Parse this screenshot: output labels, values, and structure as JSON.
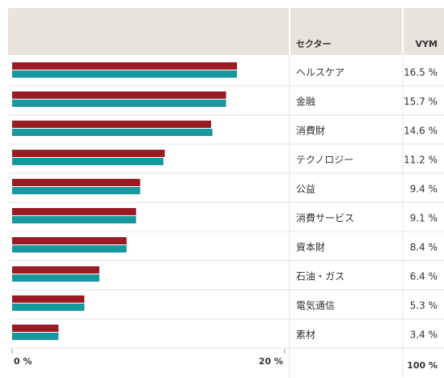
{
  "chart_data": {
    "type": "bar",
    "orientation": "horizontal",
    "columns": [
      "セクター",
      "VYM"
    ],
    "categories": [
      "ヘルスケア",
      "金融",
      "消費財",
      "テクノロジー",
      "公益",
      "消費サービス",
      "資本財",
      "石油・ガス",
      "電気通信",
      "素材"
    ],
    "series": [
      {
        "color": "#9b1b24",
        "values": [
          16.5,
          15.7,
          14.6,
          11.2,
          9.4,
          9.1,
          8.4,
          6.4,
          5.3,
          3.4
        ],
        "value_labels": [
          "16.5 %",
          "15.7 %",
          "14.6 %",
          "11.2 %",
          "9.4 %",
          "9.1 %",
          "8.4 %",
          "6.4 %",
          "5.3 %",
          "3.4 %"
        ]
      },
      {
        "color": "#17989e",
        "values": [
          16.5,
          15.7,
          14.7,
          11.1,
          9.4,
          9.1,
          8.4,
          6.4,
          5.3,
          3.4
        ]
      }
    ],
    "xlim": [
      0,
      20
    ],
    "xticks": [
      {
        "value": 0,
        "label": "0 %"
      },
      {
        "value": 20,
        "label": "20 %"
      }
    ],
    "total": "100 %"
  }
}
